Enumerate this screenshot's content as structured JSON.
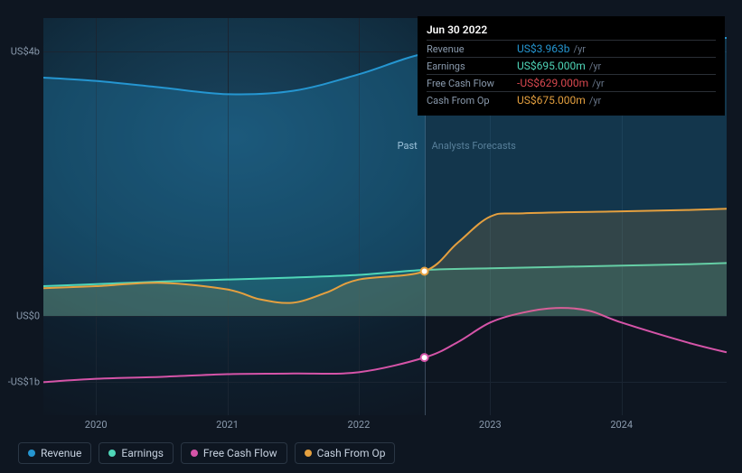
{
  "chart": {
    "type": "line",
    "background_color": "#0e1621",
    "grid_color": "#1a2532",
    "axis_text_color": "#8a9aad",
    "label_fontsize": 11,
    "x_range_years": [
      2019.6,
      2024.8
    ],
    "y_range": [
      -1500,
      4500
    ],
    "y_axis": {
      "ticks": [
        {
          "value": 4000,
          "label": "US$4b"
        },
        {
          "value": 0,
          "label": "US$0"
        },
        {
          "value": -1000,
          "label": "-US$1b"
        }
      ]
    },
    "x_axis": {
      "ticks": [
        2020,
        2021,
        2022,
        2023,
        2024
      ]
    },
    "divider_year": 2022.5,
    "past_label": "Past",
    "forecast_label": "Analysts Forecasts",
    "past_bg_gradient": [
      "#1a4560",
      "#0e1621"
    ],
    "series": [
      {
        "id": "revenue",
        "label": "Revenue",
        "color": "#2596d1",
        "line_width": 2,
        "fill_to_zero": true,
        "fill_opacity": 0.25,
        "points": [
          [
            2019.6,
            3600
          ],
          [
            2020.0,
            3550
          ],
          [
            2020.5,
            3450
          ],
          [
            2021.0,
            3350
          ],
          [
            2021.5,
            3400
          ],
          [
            2022.0,
            3650
          ],
          [
            2022.5,
            3963
          ],
          [
            2023.0,
            4050
          ],
          [
            2023.5,
            4100
          ],
          [
            2024.0,
            4150
          ],
          [
            2024.5,
            4180
          ],
          [
            2024.8,
            4200
          ]
        ]
      },
      {
        "id": "earnings",
        "label": "Earnings",
        "color": "#4fd6b8",
        "line_width": 2,
        "fill_to_zero": true,
        "fill_opacity": 0.15,
        "points": [
          [
            2019.6,
            450
          ],
          [
            2020.0,
            480
          ],
          [
            2020.5,
            520
          ],
          [
            2021.0,
            550
          ],
          [
            2021.5,
            580
          ],
          [
            2022.0,
            620
          ],
          [
            2022.5,
            695
          ],
          [
            2023.0,
            720
          ],
          [
            2023.5,
            740
          ],
          [
            2024.0,
            760
          ],
          [
            2024.5,
            780
          ],
          [
            2024.8,
            800
          ]
        ]
      },
      {
        "id": "fcf",
        "label": "Free Cash Flow",
        "color": "#d554a8",
        "line_width": 2,
        "fill_to_zero": false,
        "points": [
          [
            2019.6,
            -1000
          ],
          [
            2020.0,
            -950
          ],
          [
            2020.5,
            -920
          ],
          [
            2021.0,
            -880
          ],
          [
            2021.5,
            -870
          ],
          [
            2022.0,
            -850
          ],
          [
            2022.5,
            -629
          ],
          [
            2022.75,
            -400
          ],
          [
            2023.0,
            -100
          ],
          [
            2023.25,
            50
          ],
          [
            2023.5,
            120
          ],
          [
            2023.75,
            80
          ],
          [
            2024.0,
            -100
          ],
          [
            2024.5,
            -400
          ],
          [
            2024.8,
            -550
          ]
        ]
      },
      {
        "id": "cfo",
        "label": "Cash From Op",
        "color": "#e5a03f",
        "line_width": 2,
        "fill_to_zero": true,
        "fill_opacity": 0.15,
        "points": [
          [
            2019.6,
            420
          ],
          [
            2020.0,
            450
          ],
          [
            2020.5,
            500
          ],
          [
            2021.0,
            400
          ],
          [
            2021.25,
            250
          ],
          [
            2021.5,
            200
          ],
          [
            2021.75,
            350
          ],
          [
            2022.0,
            550
          ],
          [
            2022.5,
            675
          ],
          [
            2022.75,
            1100
          ],
          [
            2023.0,
            1500
          ],
          [
            2023.25,
            1550
          ],
          [
            2024.0,
            1580
          ],
          [
            2024.5,
            1600
          ],
          [
            2024.8,
            1620
          ]
        ]
      }
    ],
    "tooltip": {
      "date": "Jun 30 2022",
      "unit": "/yr",
      "rows": [
        {
          "label": "Revenue",
          "value": "US$3.963b",
          "color": "#2596d1"
        },
        {
          "label": "Earnings",
          "value": "US$695.000m",
          "color": "#4fd6b8"
        },
        {
          "label": "Free Cash Flow",
          "value": "-US$629.000m",
          "color": "#d9484f"
        },
        {
          "label": "Cash From Op",
          "value": "US$675.000m",
          "color": "#e5a03f"
        }
      ]
    },
    "markers_at_divider": [
      "revenue",
      "fcf",
      "cfo"
    ]
  }
}
